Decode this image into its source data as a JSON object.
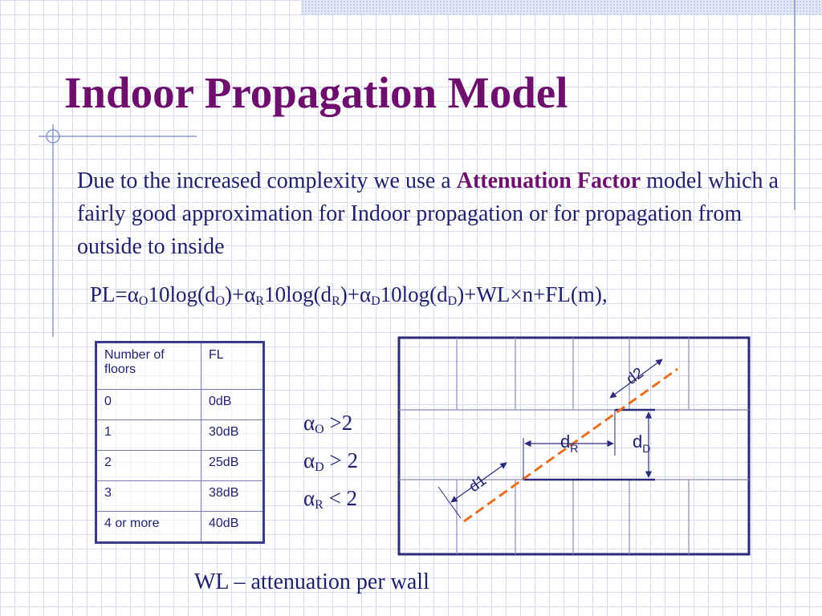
{
  "slide": {
    "title": "Indoor Propagation Model",
    "body": {
      "intro": "Due to the increased complexity we use a ",
      "highlight": "Attenuation Factor",
      "rest": " model which a fairly good approximation for Indoor propagation or for propagation from outside to inside"
    },
    "formula": {
      "t1": "PL=α",
      "s1": "O",
      "t2": "10log(d",
      "s2": "O",
      "t3": ")+α",
      "s3": "R",
      "t4": "10log(d",
      "s4": "R",
      "t5": ")+α",
      "s5": "D",
      "t6": "10log(d",
      "s6": "D",
      "t7": ")+WL×n+FL(m),"
    },
    "floor_table": {
      "headers": [
        "Number of floors",
        "FL"
      ],
      "rows": [
        [
          "0",
          "0dB"
        ],
        [
          "1",
          "30dB"
        ],
        [
          "2",
          "25dB"
        ],
        [
          "3",
          "38dB"
        ],
        [
          "4 or more",
          "40dB"
        ]
      ]
    },
    "conditions": [
      {
        "symbol": "α",
        "sub": "O",
        "relation": " >2"
      },
      {
        "symbol": "α",
        "sub": "D",
        "relation": " > 2"
      },
      {
        "symbol": "α",
        "sub": "R",
        "relation": " < 2"
      }
    ],
    "diagram": {
      "label_d2": "d2",
      "label_d1": "d1",
      "label_dR": "d",
      "label_dR_sub": "R",
      "label_dD": "d",
      "label_dD_sub": "D",
      "colors": {
        "frame": "#2b2b7a",
        "path": "#e8701f",
        "wall": "#8a8ab8"
      }
    },
    "footer": "WL – attenuation per wall"
  }
}
